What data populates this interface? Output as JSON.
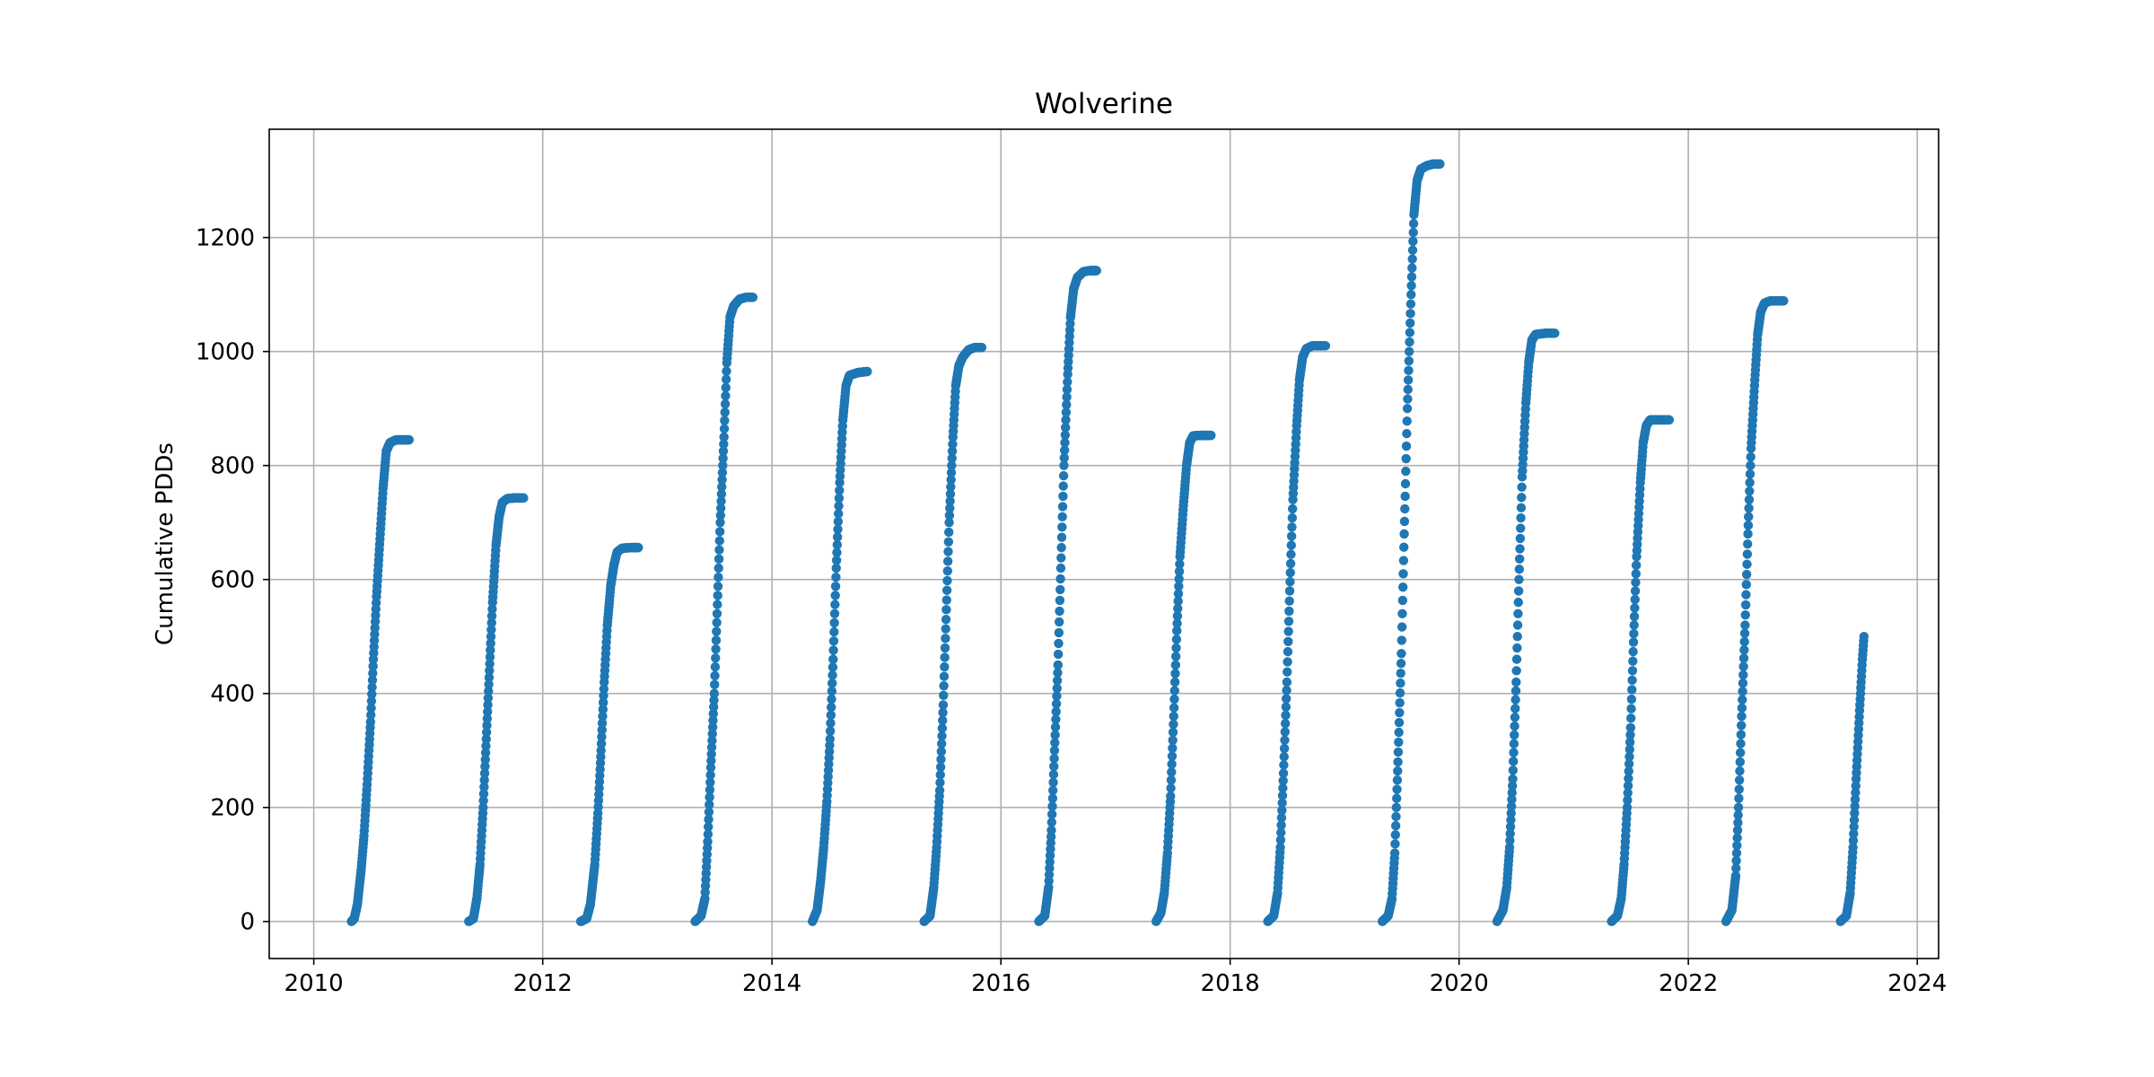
{
  "chart_data": {
    "type": "scatter",
    "title": "Wolverine",
    "xlabel": "",
    "ylabel": "Cumulative PDDs",
    "x_ticks": [
      "2010",
      "2012",
      "2014",
      "2016",
      "2018",
      "2020",
      "2022",
      "2024"
    ],
    "y_ticks": [
      "0",
      "200",
      "400",
      "600",
      "800",
      "1000",
      "1200"
    ],
    "xlim": [
      "2009-08-12",
      "2024-03-09"
    ],
    "ylim": [
      -65,
      1390
    ],
    "grid": true,
    "legend": "none",
    "marker_color": "#1f77b4",
    "series": [
      {
        "points": [
          [
            "2010-05-01",
            0
          ],
          [
            "2010-05-10",
            5
          ],
          [
            "2010-05-20",
            30
          ],
          [
            "2010-06-01",
            90
          ],
          [
            "2010-06-10",
            150
          ],
          [
            "2010-06-20",
            240
          ],
          [
            "2010-07-01",
            350
          ],
          [
            "2010-07-10",
            460
          ],
          [
            "2010-07-20",
            570
          ],
          [
            "2010-08-01",
            680
          ],
          [
            "2010-08-10",
            760
          ],
          [
            "2010-08-20",
            825
          ],
          [
            "2010-09-01",
            840
          ],
          [
            "2010-09-20",
            845
          ],
          [
            "2010-10-10",
            845
          ],
          [
            "2010-11-01",
            845
          ],
          [
            "2011-05-10",
            0
          ],
          [
            "2011-05-25",
            5
          ],
          [
            "2011-06-05",
            40
          ],
          [
            "2011-06-15",
            100
          ],
          [
            "2011-06-25",
            200
          ],
          [
            "2011-07-05",
            320
          ],
          [
            "2011-07-15",
            440
          ],
          [
            "2011-07-25",
            560
          ],
          [
            "2011-08-05",
            660
          ],
          [
            "2011-08-15",
            710
          ],
          [
            "2011-08-25",
            735
          ],
          [
            "2011-09-10",
            742
          ],
          [
            "2011-10-01",
            743
          ],
          [
            "2011-11-01",
            743
          ],
          [
            "2012-05-01",
            0
          ],
          [
            "2012-05-20",
            5
          ],
          [
            "2012-06-01",
            30
          ],
          [
            "2012-06-15",
            100
          ],
          [
            "2012-06-25",
            190
          ],
          [
            "2012-07-05",
            300
          ],
          [
            "2012-07-15",
            420
          ],
          [
            "2012-07-25",
            520
          ],
          [
            "2012-08-05",
            590
          ],
          [
            "2012-08-15",
            625
          ],
          [
            "2012-08-25",
            648
          ],
          [
            "2012-09-10",
            655
          ],
          [
            "2012-10-10",
            656
          ],
          [
            "2012-11-01",
            656
          ],
          [
            "2013-05-01",
            0
          ],
          [
            "2013-05-20",
            10
          ],
          [
            "2013-06-01",
            40
          ],
          [
            "2013-06-10",
            140
          ],
          [
            "2013-06-20",
            270
          ],
          [
            "2013-07-01",
            400
          ],
          [
            "2013-07-10",
            540
          ],
          [
            "2013-07-20",
            700
          ],
          [
            "2013-08-01",
            850
          ],
          [
            "2013-08-10",
            980
          ],
          [
            "2013-08-20",
            1060
          ],
          [
            "2013-09-01",
            1080
          ],
          [
            "2013-09-20",
            1092
          ],
          [
            "2013-10-10",
            1095
          ],
          [
            "2013-11-01",
            1095
          ],
          [
            "2014-05-10",
            0
          ],
          [
            "2014-05-25",
            20
          ],
          [
            "2014-06-05",
            70
          ],
          [
            "2014-06-15",
            130
          ],
          [
            "2014-06-25",
            210
          ],
          [
            "2014-07-05",
            320
          ],
          [
            "2014-07-15",
            460
          ],
          [
            "2014-07-25",
            620
          ],
          [
            "2014-08-05",
            770
          ],
          [
            "2014-08-15",
            880
          ],
          [
            "2014-08-25",
            940
          ],
          [
            "2014-09-05",
            958
          ],
          [
            "2014-10-01",
            963
          ],
          [
            "2014-11-01",
            965
          ],
          [
            "2015-05-01",
            0
          ],
          [
            "2015-05-20",
            10
          ],
          [
            "2015-06-01",
            60
          ],
          [
            "2015-06-10",
            130
          ],
          [
            "2015-06-20",
            230
          ],
          [
            "2015-07-01",
            380
          ],
          [
            "2015-07-10",
            530
          ],
          [
            "2015-07-20",
            700
          ],
          [
            "2015-08-01",
            850
          ],
          [
            "2015-08-10",
            940
          ],
          [
            "2015-08-20",
            975
          ],
          [
            "2015-09-01",
            990
          ],
          [
            "2015-09-20",
            1003
          ],
          [
            "2015-10-10",
            1007
          ],
          [
            "2015-11-01",
            1007
          ],
          [
            "2016-05-01",
            0
          ],
          [
            "2016-05-20",
            10
          ],
          [
            "2016-06-01",
            60
          ],
          [
            "2016-06-10",
            160
          ],
          [
            "2016-06-20",
            300
          ],
          [
            "2016-07-01",
            450
          ],
          [
            "2016-07-10",
            620
          ],
          [
            "2016-07-20",
            800
          ],
          [
            "2016-08-01",
            960
          ],
          [
            "2016-08-10",
            1060
          ],
          [
            "2016-08-20",
            1110
          ],
          [
            "2016-09-01",
            1130
          ],
          [
            "2016-09-20",
            1140
          ],
          [
            "2016-10-10",
            1142
          ],
          [
            "2016-11-01",
            1142
          ],
          [
            "2017-05-10",
            0
          ],
          [
            "2017-05-25",
            15
          ],
          [
            "2017-06-05",
            50
          ],
          [
            "2017-06-15",
            120
          ],
          [
            "2017-06-25",
            220
          ],
          [
            "2017-07-05",
            360
          ],
          [
            "2017-07-15",
            510
          ],
          [
            "2017-07-25",
            640
          ],
          [
            "2017-08-05",
            730
          ],
          [
            "2017-08-15",
            800
          ],
          [
            "2017-08-25",
            840
          ],
          [
            "2017-09-05",
            852
          ],
          [
            "2017-10-01",
            853
          ],
          [
            "2017-11-01",
            853
          ],
          [
            "2018-05-01",
            0
          ],
          [
            "2018-05-20",
            10
          ],
          [
            "2018-06-01",
            50
          ],
          [
            "2018-06-10",
            130
          ],
          [
            "2018-06-20",
            260
          ],
          [
            "2018-07-01",
            420
          ],
          [
            "2018-07-10",
            580
          ],
          [
            "2018-07-20",
            740
          ],
          [
            "2018-08-01",
            870
          ],
          [
            "2018-08-10",
            950
          ],
          [
            "2018-08-20",
            990
          ],
          [
            "2018-09-01",
            1005
          ],
          [
            "2018-09-20",
            1010
          ],
          [
            "2018-11-01",
            1010
          ],
          [
            "2019-05-01",
            0
          ],
          [
            "2019-05-20",
            10
          ],
          [
            "2019-06-01",
            40
          ],
          [
            "2019-06-10",
            120
          ],
          [
            "2019-06-20",
            280
          ],
          [
            "2019-07-01",
            470
          ],
          [
            "2019-07-10",
            680
          ],
          [
            "2019-07-20",
            900
          ],
          [
            "2019-08-01",
            1100
          ],
          [
            "2019-08-10",
            1240
          ],
          [
            "2019-08-20",
            1300
          ],
          [
            "2019-09-01",
            1320
          ],
          [
            "2019-09-20",
            1326
          ],
          [
            "2019-10-10",
            1329
          ],
          [
            "2019-11-01",
            1329
          ],
          [
            "2020-05-01",
            0
          ],
          [
            "2020-05-20",
            20
          ],
          [
            "2020-06-01",
            60
          ],
          [
            "2020-06-10",
            130
          ],
          [
            "2020-06-20",
            250
          ],
          [
            "2020-07-01",
            420
          ],
          [
            "2020-07-10",
            600
          ],
          [
            "2020-07-20",
            780
          ],
          [
            "2020-08-01",
            910
          ],
          [
            "2020-08-10",
            980
          ],
          [
            "2020-08-20",
            1020
          ],
          [
            "2020-09-01",
            1030
          ],
          [
            "2020-10-01",
            1032
          ],
          [
            "2020-11-01",
            1032
          ],
          [
            "2021-05-01",
            0
          ],
          [
            "2021-05-20",
            10
          ],
          [
            "2021-06-01",
            40
          ],
          [
            "2021-06-10",
            100
          ],
          [
            "2021-06-20",
            200
          ],
          [
            "2021-07-01",
            340
          ],
          [
            "2021-07-10",
            490
          ],
          [
            "2021-07-20",
            640
          ],
          [
            "2021-08-01",
            770
          ],
          [
            "2021-08-10",
            840
          ],
          [
            "2021-08-20",
            870
          ],
          [
            "2021-09-01",
            880
          ],
          [
            "2021-10-01",
            880
          ],
          [
            "2021-11-01",
            880
          ],
          [
            "2022-05-01",
            0
          ],
          [
            "2022-05-20",
            20
          ],
          [
            "2022-06-01",
            80
          ],
          [
            "2022-06-10",
            200
          ],
          [
            "2022-06-20",
            360
          ],
          [
            "2022-07-01",
            520
          ],
          [
            "2022-07-10",
            680
          ],
          [
            "2022-07-20",
            830
          ],
          [
            "2022-08-01",
            950
          ],
          [
            "2022-08-10",
            1030
          ],
          [
            "2022-08-20",
            1070
          ],
          [
            "2022-09-01",
            1085
          ],
          [
            "2022-09-20",
            1089
          ],
          [
            "2022-11-01",
            1089
          ],
          [
            "2023-05-01",
            0
          ],
          [
            "2023-05-20",
            10
          ],
          [
            "2023-06-01",
            50
          ],
          [
            "2023-06-10",
            130
          ],
          [
            "2023-06-20",
            250
          ],
          [
            "2023-07-01",
            370
          ],
          [
            "2023-07-10",
            460
          ],
          [
            "2023-07-15",
            500
          ]
        ]
      }
    ]
  }
}
